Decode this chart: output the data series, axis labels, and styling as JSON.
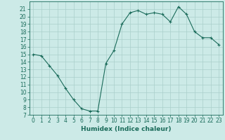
{
  "x": [
    0,
    1,
    2,
    3,
    4,
    5,
    6,
    7,
    8,
    9,
    10,
    11,
    12,
    13,
    14,
    15,
    16,
    17,
    18,
    19,
    20,
    21,
    22,
    23
  ],
  "y": [
    15,
    14.8,
    13.5,
    12.2,
    10.5,
    9.0,
    7.8,
    7.5,
    7.5,
    13.8,
    15.5,
    19.0,
    20.5,
    20.8,
    20.3,
    20.5,
    20.3,
    19.3,
    21.3,
    20.3,
    18.0,
    17.2,
    17.2,
    16.3
  ],
  "line_color": "#1a6b5a",
  "marker": "+",
  "markersize": 3,
  "linewidth": 0.8,
  "bg_color": "#cceae7",
  "grid_color": "#aacfcb",
  "xlabel": "Humidex (Indice chaleur)",
  "ylim": [
    7,
    22
  ],
  "xlim": [
    -0.5,
    23.5
  ],
  "yticks": [
    7,
    8,
    9,
    10,
    11,
    12,
    13,
    14,
    15,
    16,
    17,
    18,
    19,
    20,
    21
  ],
  "xticks": [
    0,
    1,
    2,
    3,
    4,
    5,
    6,
    7,
    8,
    9,
    10,
    11,
    12,
    13,
    14,
    15,
    16,
    17,
    18,
    19,
    20,
    21,
    22,
    23
  ],
  "tick_fontsize": 5.5,
  "label_fontsize": 6.5
}
